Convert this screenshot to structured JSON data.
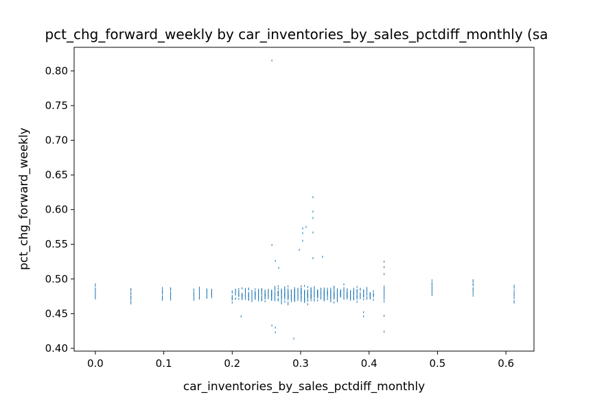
{
  "chart_data": {
    "type": "scatter",
    "title": "pct_chg_forward_weekly by car_inventories_by_sales_pctdiff_monthly (sa",
    "xlabel": "car_inventories_by_sales_pctdiff_monthly",
    "ylabel": "pct_chg_forward_weekly",
    "xlim": [
      -0.031,
      0.641
    ],
    "ylim": [
      0.396,
      0.834
    ],
    "xticks": [
      "0.0",
      "0.1",
      "0.2",
      "0.3",
      "0.4",
      "0.5",
      "0.6"
    ],
    "yticks": [
      "0.40",
      "0.45",
      "0.50",
      "0.55",
      "0.60",
      "0.65",
      "0.70",
      "0.75",
      "0.80"
    ],
    "grid": false,
    "marker_color": "#1f77b4",
    "columns": [
      {
        "x": 0.0,
        "lo": 0.472,
        "hi": 0.492
      },
      {
        "x": 0.052,
        "lo": 0.465,
        "hi": 0.486
      },
      {
        "x": 0.098,
        "lo": 0.47,
        "hi": 0.486
      },
      {
        "x": 0.11,
        "lo": 0.471,
        "hi": 0.487
      },
      {
        "x": 0.144,
        "lo": 0.47,
        "hi": 0.485
      },
      {
        "x": 0.152,
        "lo": 0.471,
        "hi": 0.488
      },
      {
        "x": 0.163,
        "lo": 0.473,
        "hi": 0.485
      },
      {
        "x": 0.17,
        "lo": 0.474,
        "hi": 0.485
      },
      {
        "x": 0.422,
        "lo": 0.468,
        "hi": 0.489
      },
      {
        "x": 0.492,
        "lo": 0.478,
        "hi": 0.497
      },
      {
        "x": 0.552,
        "lo": 0.477,
        "hi": 0.498
      },
      {
        "x": 0.612,
        "lo": 0.466,
        "hi": 0.49
      }
    ],
    "cluster": {
      "x_range": [
        0.2,
        0.41
      ],
      "center": 0.305,
      "y_center": 0.478
    },
    "points": [
      {
        "x": 0.258,
        "y": 0.815
      },
      {
        "x": 0.318,
        "y": 0.618
      },
      {
        "x": 0.318,
        "y": 0.597
      },
      {
        "x": 0.318,
        "y": 0.588
      },
      {
        "x": 0.303,
        "y": 0.573
      },
      {
        "x": 0.308,
        "y": 0.575
      },
      {
        "x": 0.303,
        "y": 0.566
      },
      {
        "x": 0.318,
        "y": 0.567
      },
      {
        "x": 0.303,
        "y": 0.555
      },
      {
        "x": 0.258,
        "y": 0.549
      },
      {
        "x": 0.298,
        "y": 0.542
      },
      {
        "x": 0.263,
        "y": 0.526
      },
      {
        "x": 0.318,
        "y": 0.53
      },
      {
        "x": 0.332,
        "y": 0.532
      },
      {
        "x": 0.422,
        "y": 0.525
      },
      {
        "x": 0.422,
        "y": 0.517
      },
      {
        "x": 0.422,
        "y": 0.507
      },
      {
        "x": 0.268,
        "y": 0.516
      },
      {
        "x": 0.422,
        "y": 0.447
      },
      {
        "x": 0.422,
        "y": 0.424
      },
      {
        "x": 0.263,
        "y": 0.43
      },
      {
        "x": 0.263,
        "y": 0.423
      },
      {
        "x": 0.258,
        "y": 0.433
      },
      {
        "x": 0.29,
        "y": 0.414
      },
      {
        "x": 0.213,
        "y": 0.446
      },
      {
        "x": 0.392,
        "y": 0.452
      },
      {
        "x": 0.392,
        "y": 0.446
      }
    ]
  }
}
